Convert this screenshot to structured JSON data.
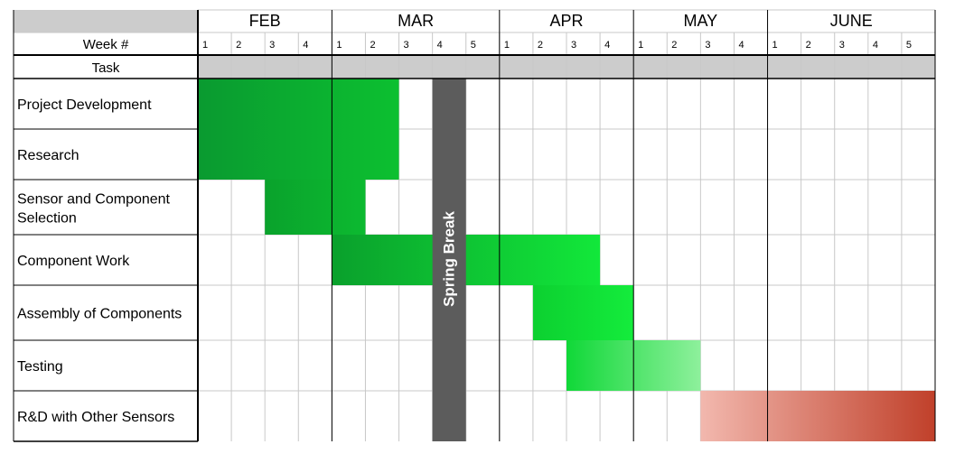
{
  "chart_data": {
    "type": "gantt",
    "title": "",
    "header": {
      "week_label": "Week #",
      "task_label": "Task"
    },
    "months": [
      {
        "name": "FEB",
        "weeks": [
          "1",
          "2",
          "3",
          "4"
        ]
      },
      {
        "name": "MAR",
        "weeks": [
          "1",
          "2",
          "3",
          "4",
          "5"
        ]
      },
      {
        "name": "APR",
        "weeks": [
          "1",
          "2",
          "3",
          "4"
        ]
      },
      {
        "name": "MAY",
        "weeks": [
          "1",
          "2",
          "3",
          "4"
        ]
      },
      {
        "name": "JUNE",
        "weeks": [
          "1",
          "2",
          "3",
          "4",
          "5"
        ]
      }
    ],
    "tasks": [
      {
        "name": "Project Development",
        "start_week": 1,
        "end_week": 6,
        "color_from": "#0a9a30",
        "color_to": "#0cc030"
      },
      {
        "name": "Research",
        "start_week": 1,
        "end_week": 6,
        "color_from": "#0a9a30",
        "color_to": "#0cc030"
      },
      {
        "name": "Sensor and Component Selection",
        "start_week": 3,
        "end_week": 5,
        "color_from": "#0aa22c",
        "color_to": "#0cba30"
      },
      {
        "name": "Component Work",
        "start_week": 5,
        "end_week": 12,
        "color_from": "#0aa02c",
        "color_to": "#12e83a"
      },
      {
        "name": "Assembly of Components",
        "start_week": 11,
        "end_week": 13,
        "color_from": "#0cd030",
        "color_to": "#14ec3c"
      },
      {
        "name": "Testing",
        "start_week": 12,
        "end_week": 15,
        "color_from": "#10d838",
        "color_to": "#8ef09c"
      },
      {
        "name": "R&D with Other Sensors",
        "start_week": 16,
        "end_week": 22,
        "color_from": "#f2b8ae",
        "color_to": "#c0402a"
      }
    ],
    "annotations": [
      {
        "label": "Spring Break",
        "week": 8,
        "color": "#5c5c5c",
        "text_color": "#ffffff"
      }
    ],
    "colors": {
      "header_gray": "#cccccc",
      "grid_light": "#c8c8c8",
      "grid_dark": "#000000"
    }
  }
}
